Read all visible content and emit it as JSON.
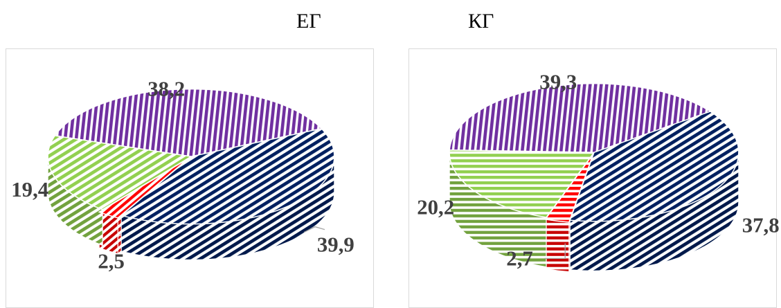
{
  "chart_data": [
    {
      "type": "pie",
      "title": "ЕГ",
      "style": "3d",
      "slices": [
        {
          "value": 38.2,
          "label": "38,2",
          "color": "#7030a0",
          "pattern": "vertical-stripes"
        },
        {
          "value": 39.9,
          "label": "39,9",
          "color": "#002060",
          "pattern": "diagonal-stripes"
        },
        {
          "value": 2.5,
          "label": "2,5",
          "color": "#ff0000",
          "pattern": "zigzag"
        },
        {
          "value": 19.4,
          "label": "19,4",
          "color": "#92d050",
          "pattern": "diagonal-stripes"
        }
      ]
    },
    {
      "type": "pie",
      "title": "КГ",
      "style": "3d",
      "slices": [
        {
          "value": 39.3,
          "label": "39,3",
          "color": "#7030a0",
          "pattern": "vertical-stripes"
        },
        {
          "value": 37.8,
          "label": "37,8",
          "color": "#002060",
          "pattern": "diagonal-stripes"
        },
        {
          "value": 2.7,
          "label": "2,7",
          "color": "#ff0000",
          "pattern": "horizontal-stripes"
        },
        {
          "value": 20.2,
          "label": "20,2",
          "color": "#92d050",
          "pattern": "horizontal-stripes"
        }
      ]
    }
  ]
}
